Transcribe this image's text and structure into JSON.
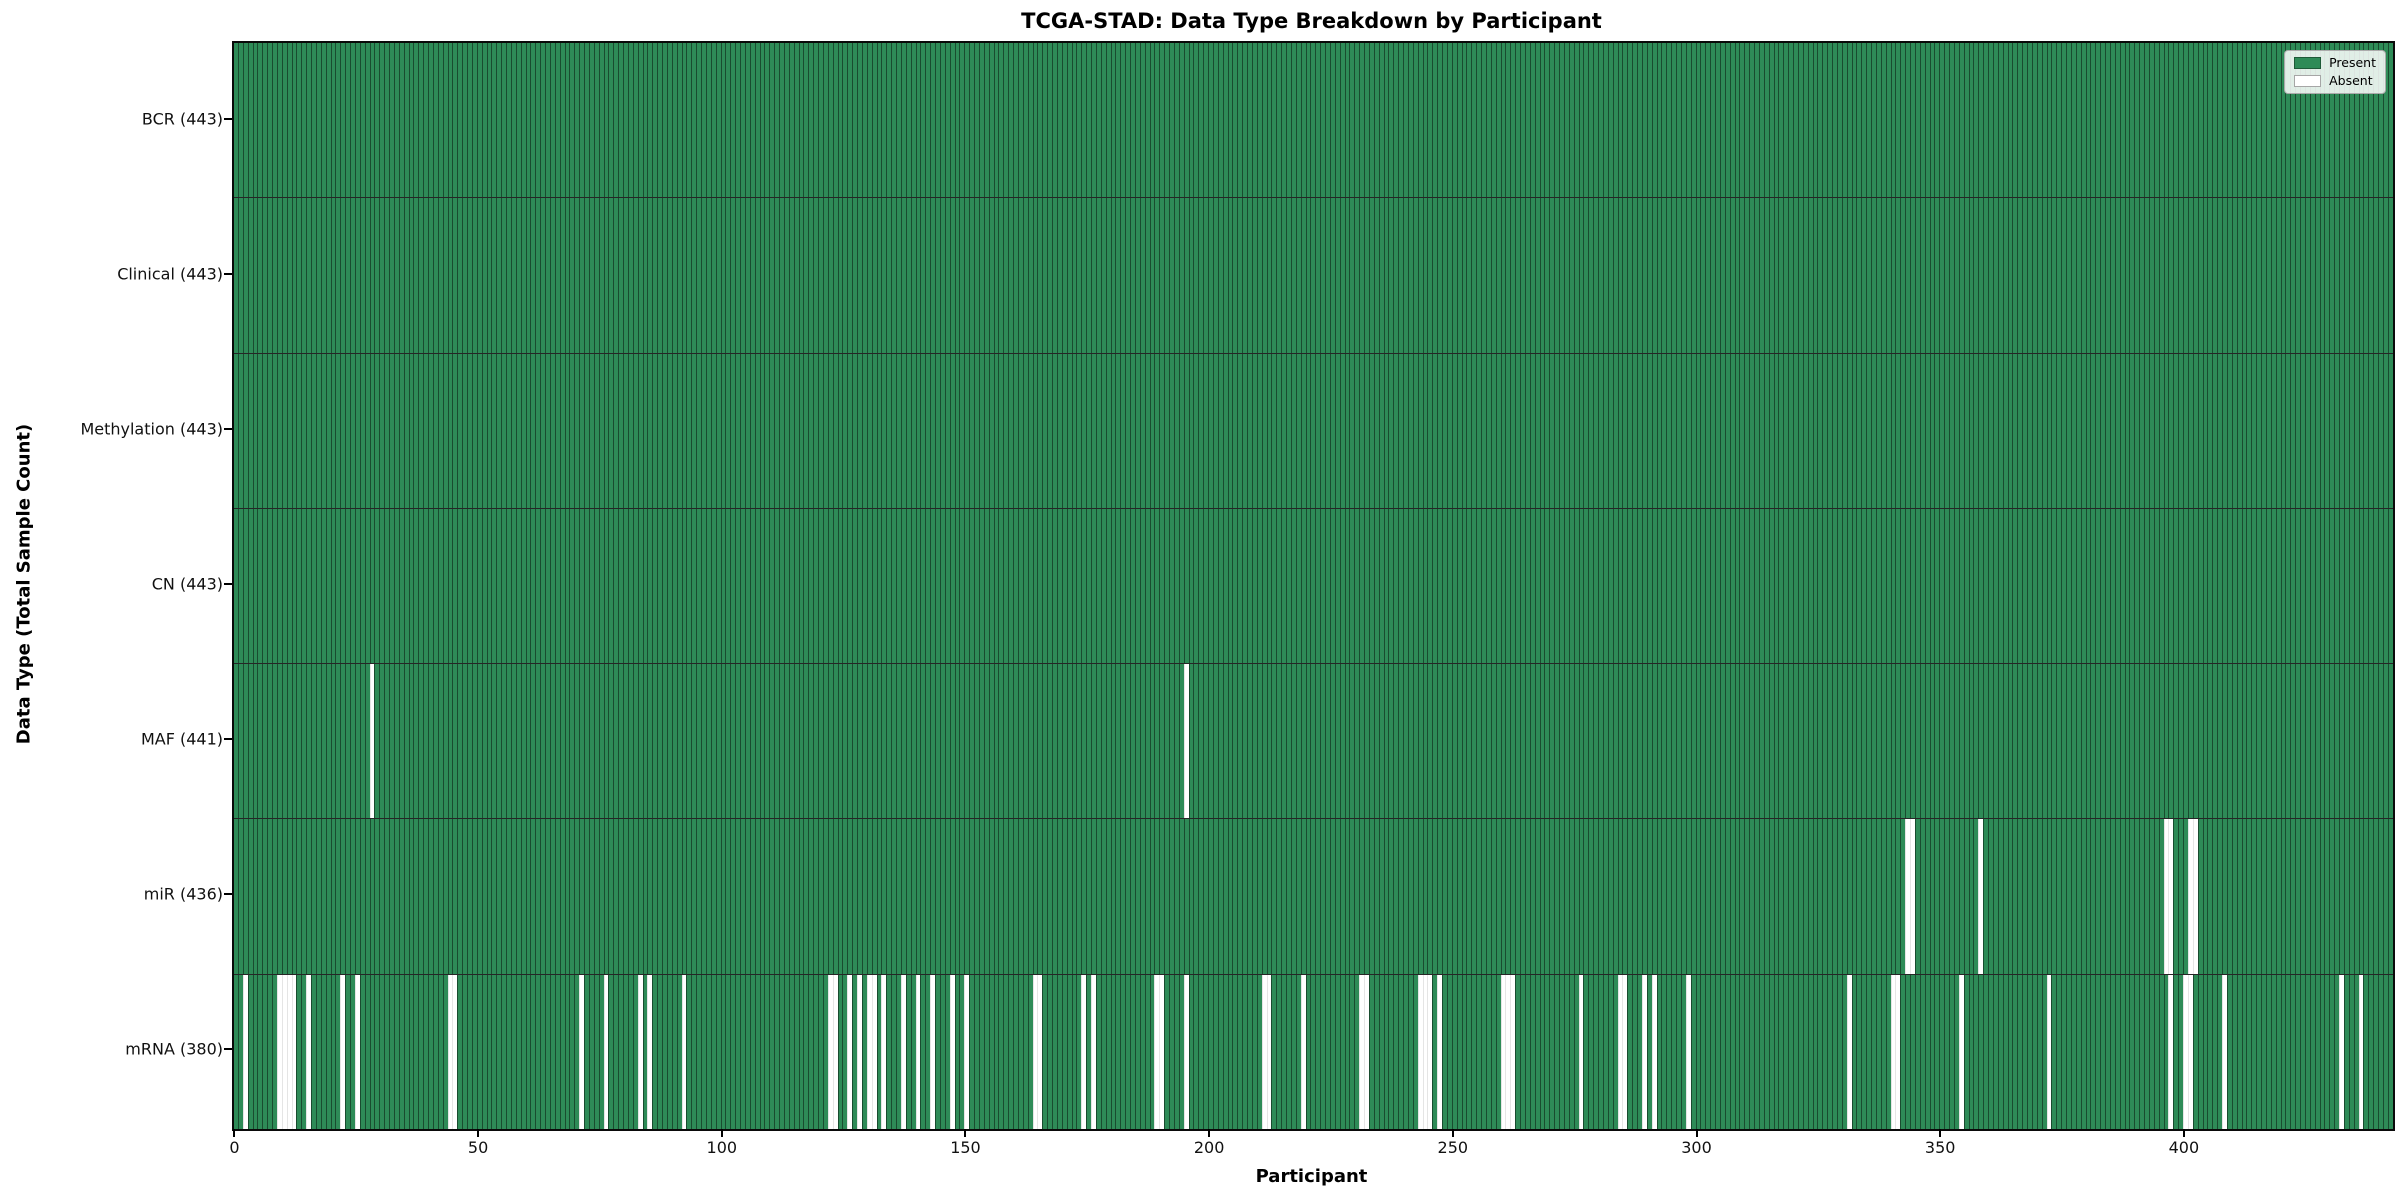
{
  "title": "TCGA-STAD: Data Type Breakdown by Participant",
  "chart_data": {
    "type": "heatmap",
    "title": "TCGA-STAD: Data Type Breakdown by Participant",
    "xlabel": "Participant",
    "ylabel": "Data Type (Total Sample Count)",
    "n_participants": 443,
    "x_range": [
      0,
      442
    ],
    "x_ticks": [
      0,
      50,
      100,
      150,
      200,
      250,
      300,
      350,
      400
    ],
    "grid": false,
    "legend_position": "upper right",
    "legend": [
      {
        "label": "Present",
        "color": "#2e8b57"
      },
      {
        "label": "Absent",
        "color": "#ffffff"
      }
    ],
    "rows": [
      {
        "data_type": "BCR",
        "total": 443,
        "label": "BCR (443)",
        "absent_participants": []
      },
      {
        "data_type": "Clinical",
        "total": 443,
        "label": "Clinical (443)",
        "absent_participants": []
      },
      {
        "data_type": "Methylation",
        "total": 443,
        "label": "Methylation (443)",
        "absent_participants": []
      },
      {
        "data_type": "CN",
        "total": 443,
        "label": "CN (443)",
        "absent_participants": []
      },
      {
        "data_type": "MAF",
        "total": 441,
        "label": "MAF (441)",
        "absent_participants": [
          28,
          195
        ]
      },
      {
        "data_type": "miR",
        "total": 436,
        "label": "miR (436)",
        "absent_participants": [
          343,
          344,
          358,
          396,
          397,
          401,
          402
        ]
      },
      {
        "data_type": "mRNA",
        "total": 380,
        "label": "mRNA (380)",
        "absent_participants": [
          2,
          9,
          10,
          11,
          12,
          15,
          22,
          25,
          44,
          45,
          71,
          76,
          83,
          85,
          92,
          122,
          123,
          126,
          128,
          130,
          131,
          133,
          137,
          140,
          143,
          147,
          150,
          164,
          165,
          174,
          176,
          189,
          190,
          195,
          211,
          212,
          219,
          231,
          232,
          243,
          244,
          245,
          247,
          260,
          261,
          262,
          276,
          284,
          285,
          289,
          291,
          298,
          331,
          340,
          341,
          354,
          372,
          397,
          400,
          401,
          408,
          432,
          436
        ]
      }
    ]
  },
  "colors": {
    "present": "#2e8b57",
    "absent": "#ffffff",
    "bar_edge": "rgba(0,0,0,0.45)",
    "row_separator": "rgba(0,0,0,0.85)",
    "plot_border": "#0a0a0a"
  }
}
